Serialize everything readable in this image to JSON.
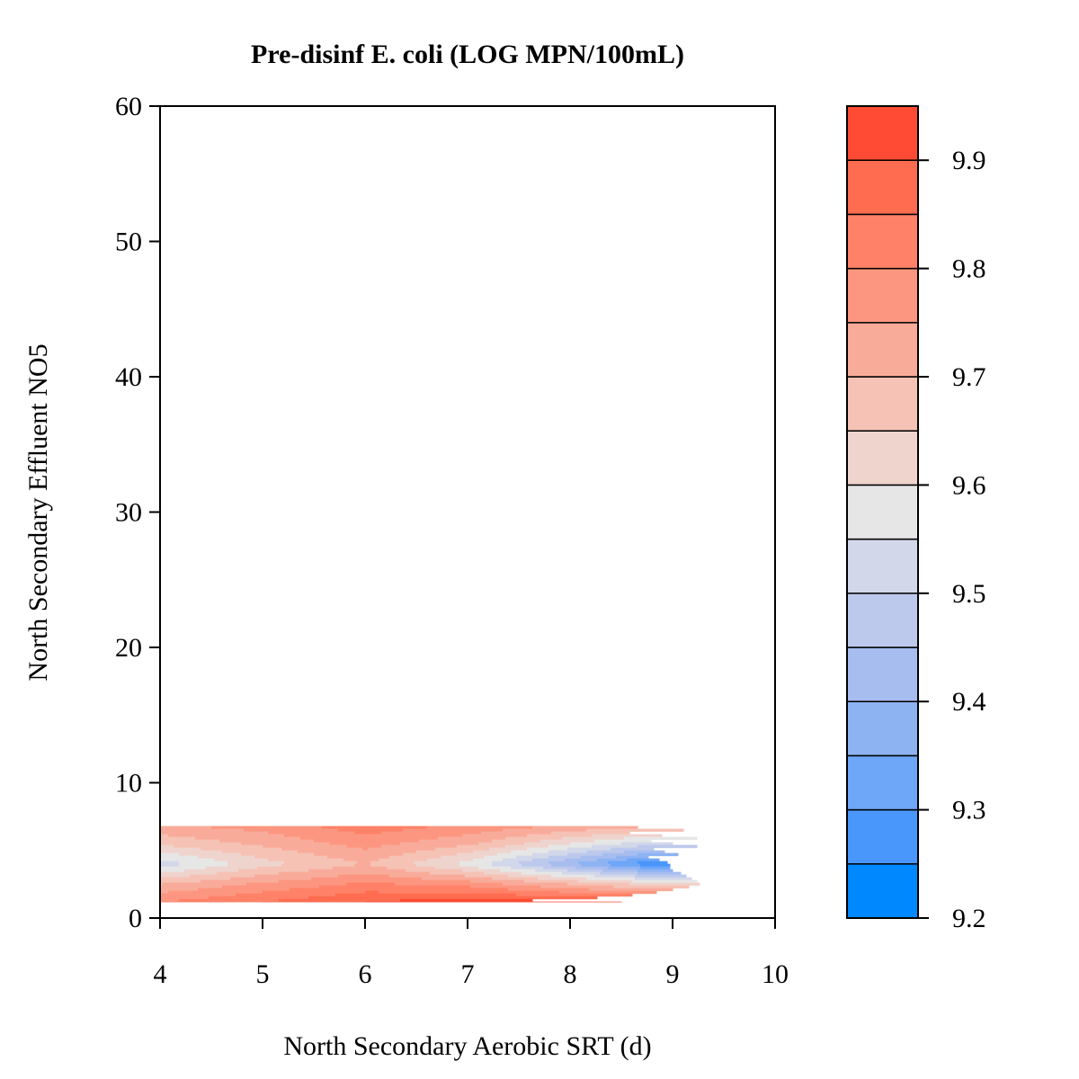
{
  "chart_data": {
    "type": "heatmap",
    "subtype": "filled-contour",
    "title": "Pre-disinf E. coli (LOG MPN/100mL)",
    "xlabel": "North Secondary Aerobic SRT (d)",
    "ylabel": "North Secondary Effluent NO5",
    "xlim": [
      4,
      10
    ],
    "ylim": [
      0,
      60
    ],
    "x_ticks": [
      4,
      5,
      6,
      7,
      8,
      9,
      10
    ],
    "y_ticks": [
      0,
      10,
      20,
      30,
      40,
      50,
      60
    ],
    "data_extent": {
      "x": [
        4,
        9.33
      ],
      "y": [
        1.2,
        6.8
      ]
    },
    "levels": [
      9.2,
      9.25,
      9.3,
      9.35,
      9.4,
      9.45,
      9.5,
      9.55,
      9.6,
      9.65,
      9.7,
      9.75,
      9.8,
      9.85,
      9.9,
      9.95
    ],
    "level_colors": [
      "#0088ff",
      "#4a97fb",
      "#6ea6f8",
      "#8eb3f3",
      "#a8bdef",
      "#bdc9ec",
      "#d2d8ea",
      "#e6e6e6",
      "#efd3cd",
      "#f5c2b5",
      "#f9ab9a",
      "#fc9680",
      "#ff8268",
      "#ff6c50",
      "#ff4b33"
    ],
    "colorbar_ticks": [
      9.2,
      9.3,
      9.4,
      9.5,
      9.6,
      9.7,
      9.8,
      9.9
    ],
    "surface": {
      "x": [
        4,
        5,
        6,
        7,
        8,
        9,
        9.33
      ],
      "y": [
        1.2,
        2.5,
        4,
        5.5,
        6.8
      ],
      "z": [
        [
          9.8,
          9.85,
          9.9,
          9.93,
          9.91,
          9.89,
          9.88
        ],
        [
          9.7,
          9.76,
          9.81,
          9.78,
          9.7,
          9.62,
          9.6
        ],
        [
          9.52,
          9.63,
          9.7,
          9.58,
          9.4,
          9.22,
          9.21
        ],
        [
          9.66,
          9.71,
          9.77,
          9.71,
          9.6,
          9.5,
          9.48
        ],
        [
          9.74,
          9.77,
          9.83,
          9.79,
          9.74,
          9.7,
          9.69
        ]
      ]
    }
  }
}
